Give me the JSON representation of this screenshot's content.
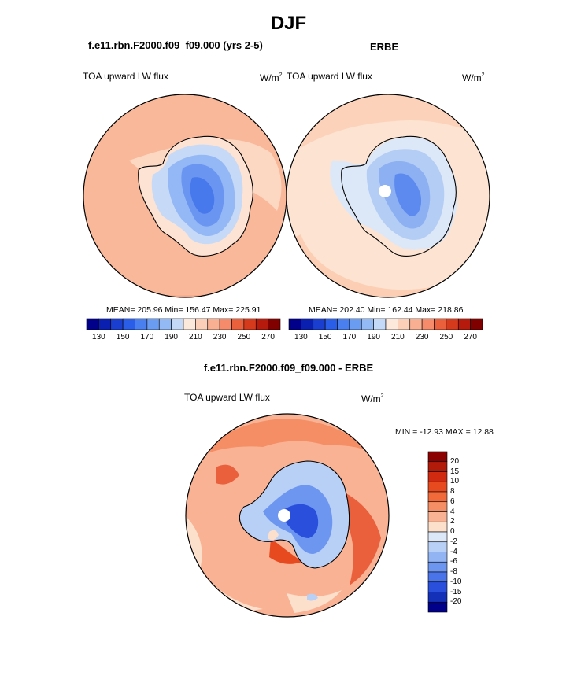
{
  "page": {
    "title": "DJF",
    "run_title": "f.e11.rbn.F2000.f09_f09.000 (yrs 2-5)",
    "obs_title": "ERBE",
    "diff_title": "f.e11.rbn.F2000.f09_f09.000 - ERBE"
  },
  "chart_data": [
    {
      "type": "heatmap",
      "name": "model-map",
      "projection": "south-polar-stereographic",
      "title": "TOA upward LW flux",
      "units": "W/m",
      "units_exp": "2",
      "stats": "MEAN= 205.96  Min= 156.47  Max= 225.91",
      "mean": 205.96,
      "min": 156.47,
      "max": 225.91,
      "levels": [
        130,
        140,
        150,
        160,
        170,
        180,
        190,
        200,
        210,
        220,
        230,
        240,
        250,
        260,
        270
      ],
      "tick_labels": [
        "130",
        "150",
        "170",
        "190",
        "210",
        "230",
        "250",
        "270"
      ],
      "colors": [
        "#00008b",
        "#0a1fb0",
        "#1a3fd0",
        "#2a5ee8",
        "#4a7ff0",
        "#6a9cf2",
        "#93baf5",
        "#c4d9f7",
        "#fde8dc",
        "#fcd0b8",
        "#f9b092",
        "#f58b6a",
        "#ea5f3c",
        "#d63a1c",
        "#b51a0c",
        "#800000"
      ]
    },
    {
      "type": "heatmap",
      "name": "obs-map",
      "projection": "south-polar-stereographic",
      "title": "TOA upward LW flux",
      "units": "W/m",
      "units_exp": "2",
      "stats": "MEAN= 202.40  Min= 162.44  Max= 218.86",
      "mean": 202.4,
      "min": 162.44,
      "max": 218.86,
      "levels": [
        130,
        140,
        150,
        160,
        170,
        180,
        190,
        200,
        210,
        220,
        230,
        240,
        250,
        260,
        270
      ],
      "tick_labels": [
        "130",
        "150",
        "170",
        "190",
        "210",
        "230",
        "250",
        "270"
      ],
      "colors": [
        "#00008b",
        "#0a1fb0",
        "#1a3fd0",
        "#2a5ee8",
        "#4a7ff0",
        "#6a9cf2",
        "#93baf5",
        "#c4d9f7",
        "#fde8dc",
        "#fcd0b8",
        "#f9b092",
        "#f58b6a",
        "#ea5f3c",
        "#d63a1c",
        "#b51a0c",
        "#800000"
      ]
    },
    {
      "type": "heatmap",
      "name": "diff-map",
      "projection": "south-polar-stereographic",
      "title": "TOA upward LW flux",
      "units": "W/m",
      "units_exp": "2",
      "stats": "MIN = -12.93 MAX =  12.88",
      "min": -12.93,
      "max": 12.88,
      "levels": [
        20,
        15,
        10,
        8,
        6,
        4,
        2,
        0,
        -2,
        -4,
        -6,
        -8,
        -10,
        -15,
        -20
      ],
      "tick_labels": [
        "20",
        "15",
        "10",
        "8",
        "6",
        "4",
        "2",
        "0",
        "-2",
        "-4",
        "-6",
        "-8",
        "-10",
        "-15",
        "-20"
      ],
      "colors": [
        "#8b0000",
        "#b21a0a",
        "#d02a10",
        "#e84a20",
        "#f26a3a",
        "#f58e64",
        "#f9b394",
        "#fde0cc",
        "#dce8f8",
        "#b9d0f6",
        "#92b4f3",
        "#6d96f0",
        "#4a74ea",
        "#2a4fdc",
        "#1530b8",
        "#00008b"
      ]
    }
  ]
}
